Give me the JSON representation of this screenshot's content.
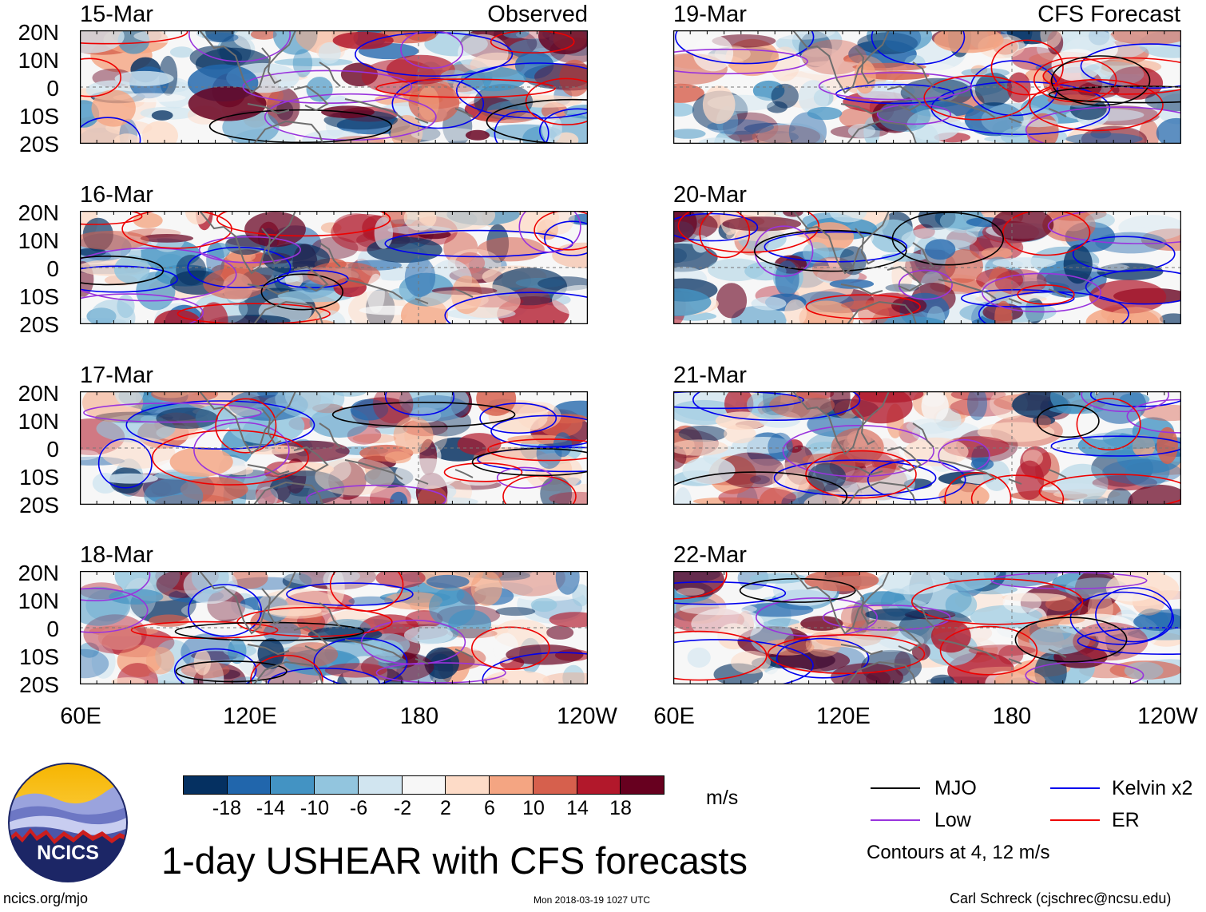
{
  "variable_title": "1-day USHEAR with CFS forecasts",
  "observed_label": "Observed",
  "forecast_label": "CFS Forecast",
  "panels_observed": [
    {
      "date": "15-Mar"
    },
    {
      "date": "16-Mar"
    },
    {
      "date": "17-Mar"
    },
    {
      "date": "18-Mar"
    }
  ],
  "panels_forecast": [
    {
      "date": "19-Mar"
    },
    {
      "date": "20-Mar"
    },
    {
      "date": "21-Mar"
    },
    {
      "date": "22-Mar"
    }
  ],
  "lat_labels": [
    "20N",
    "10N",
    "0",
    "10S",
    "20S"
  ],
  "lon_labels": [
    "60E",
    "120E",
    "180",
    "120W"
  ],
  "colorbar": {
    "ticks": [
      "-18",
      "-14",
      "-10",
      "-6",
      "-2",
      "2",
      "6",
      "10",
      "14",
      "18"
    ],
    "colors": [
      "#053061",
      "#2166ac",
      "#4393c3",
      "#92c5de",
      "#d1e5f0",
      "#f7f7f7",
      "#fddbc7",
      "#f4a582",
      "#d6604d",
      "#b2182b",
      "#67001f"
    ],
    "units": "m/s"
  },
  "legend": {
    "items": [
      {
        "label": "MJO",
        "color": "#000000"
      },
      {
        "label": "Kelvin x2",
        "color": "#0000ee"
      },
      {
        "label": "Low",
        "color": "#9933dd"
      },
      {
        "label": "ER",
        "color": "#ee0000"
      }
    ],
    "note": "Contours at 4, 12 m/s"
  },
  "footer": {
    "website": "ncics.org/mjo",
    "timestamp": "Mon 2018-03-19 1027 UTC",
    "author": "Carl Schreck (cjschrec@ncsu.edu)"
  },
  "logo_text": "NCICS"
}
